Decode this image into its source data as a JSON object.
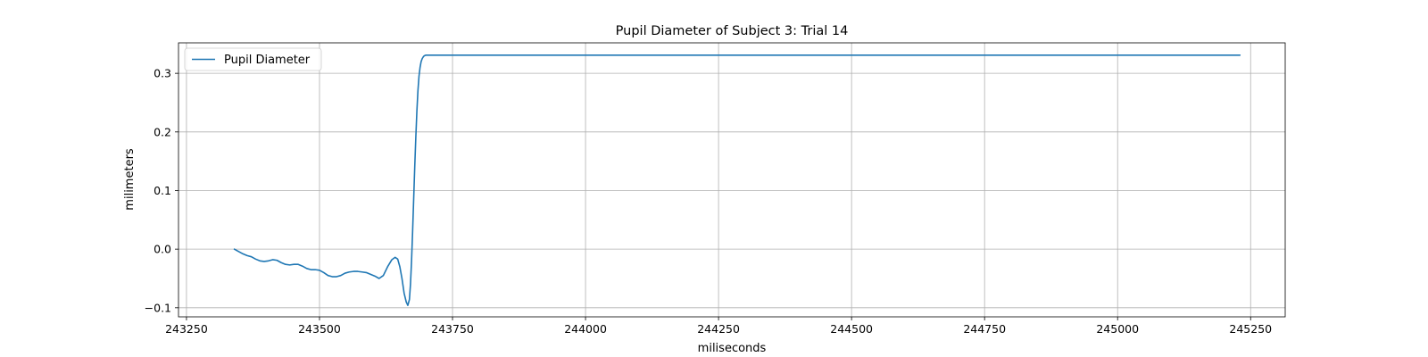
{
  "chart_data": {
    "type": "line",
    "title": "Pupil Diameter of Subject 3: Trial 14",
    "xlabel": "miliseconds",
    "ylabel": "milimeters",
    "xlim": [
      243235,
      245315
    ],
    "ylim": [
      -0.1155,
      0.352
    ],
    "xticks": [
      243250,
      243500,
      243750,
      244000,
      244250,
      244500,
      244750,
      245000,
      245250
    ],
    "yticks": [
      -0.1,
      0.0,
      0.1,
      0.2,
      0.3
    ],
    "xtick_labels": [
      "243250",
      "243500",
      "243750",
      "244000",
      "244250",
      "244500",
      "244750",
      "245000",
      "245250"
    ],
    "ytick_labels": [
      "−0.1",
      "0.0",
      "0.1",
      "0.2",
      "0.3"
    ],
    "grid": true,
    "legend": {
      "position": "top-left",
      "entries": [
        "Pupil Diameter"
      ]
    },
    "series": [
      {
        "name": "Pupil Diameter",
        "color": "#1f77b4",
        "x": [
          243340,
          243348,
          243356,
          243364,
          243372,
          243380,
          243388,
          243396,
          243404,
          243412,
          243420,
          243428,
          243436,
          243444,
          243452,
          243460,
          243468,
          243476,
          243484,
          243492,
          243500,
          243508,
          243516,
          243524,
          243532,
          243540,
          243548,
          243556,
          243564,
          243572,
          243580,
          243588,
          243596,
          243604,
          243612,
          243620,
          243628,
          243636,
          243642,
          243647,
          243651,
          243655,
          243659,
          243663,
          243666,
          243669,
          243671,
          243673,
          243675,
          243677,
          243679,
          243681,
          243683,
          243685,
          243687,
          243689,
          243691,
          243693,
          243695,
          243697,
          243700,
          243704,
          243710,
          243720,
          243740,
          243800,
          244000,
          244500,
          245000,
          245230
        ],
        "y": [
          0.0,
          -0.004,
          -0.008,
          -0.011,
          -0.013,
          -0.017,
          -0.02,
          -0.021,
          -0.02,
          -0.018,
          -0.019,
          -0.023,
          -0.026,
          -0.027,
          -0.026,
          -0.026,
          -0.029,
          -0.033,
          -0.035,
          -0.035,
          -0.036,
          -0.04,
          -0.045,
          -0.047,
          -0.047,
          -0.045,
          -0.041,
          -0.039,
          -0.038,
          -0.038,
          -0.039,
          -0.04,
          -0.043,
          -0.046,
          -0.05,
          -0.045,
          -0.03,
          -0.018,
          -0.014,
          -0.017,
          -0.03,
          -0.05,
          -0.075,
          -0.09,
          -0.096,
          -0.086,
          -0.06,
          -0.02,
          0.03,
          0.085,
          0.14,
          0.19,
          0.235,
          0.27,
          0.295,
          0.31,
          0.32,
          0.325,
          0.328,
          0.33,
          0.331,
          0.331,
          0.331,
          0.331,
          0.331,
          0.331,
          0.331,
          0.331,
          0.331,
          0.331
        ]
      }
    ]
  }
}
